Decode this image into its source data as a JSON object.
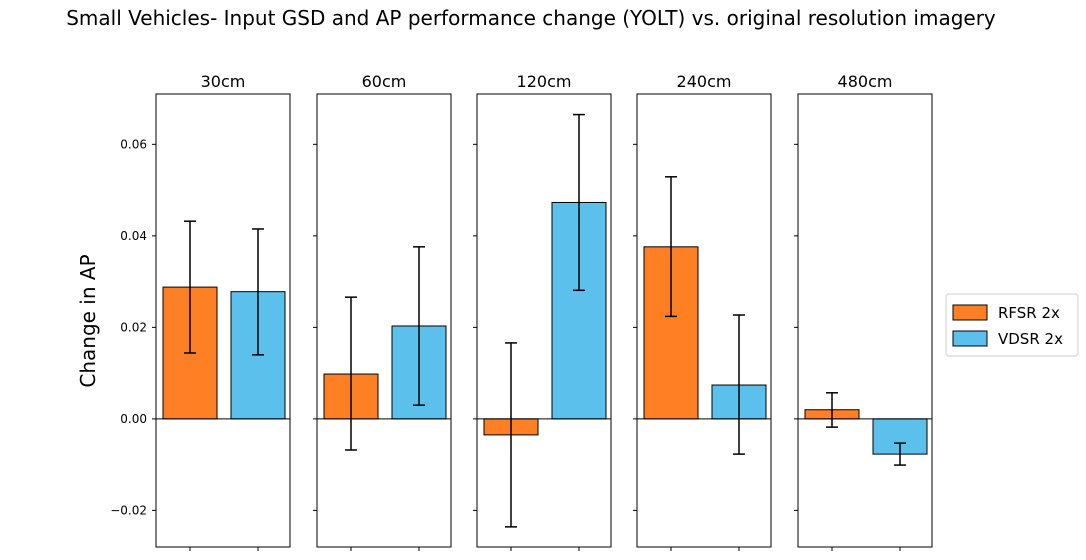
{
  "chart_data": {
    "type": "bar",
    "title": "Small Vehicles- Input GSD and AP performance change (YOLT) vs. original resolution imagery",
    "ylabel": "Change in AP",
    "xlabel": "",
    "ylim": [
      -0.028,
      0.071
    ],
    "yticks": [
      -0.02,
      0.0,
      0.02,
      0.04,
      0.06
    ],
    "ytick_labels": [
      "−0.02",
      "0.00",
      "0.02",
      "0.04",
      "0.06"
    ],
    "colors": {
      "RFSR 2x": "#ff7f24",
      "VDSR 2x": "#5bc0eb"
    },
    "legend": {
      "placement": "right",
      "entries": [
        "RFSR 2x",
        "VDSR 2x"
      ]
    },
    "panels": [
      {
        "title": "30cm",
        "bars": [
          {
            "series": "RFSR 2x",
            "value": 0.0288,
            "err_low": 0.0144,
            "err_high": 0.0432
          },
          {
            "series": "VDSR 2x",
            "value": 0.0278,
            "err_low": 0.014,
            "err_high": 0.0415
          }
        ]
      },
      {
        "title": "60cm",
        "bars": [
          {
            "series": "RFSR 2x",
            "value": 0.0098,
            "err_low": -0.0068,
            "err_high": 0.0266
          },
          {
            "series": "VDSR 2x",
            "value": 0.0203,
            "err_low": 0.003,
            "err_high": 0.0376
          }
        ]
      },
      {
        "title": "120cm",
        "bars": [
          {
            "series": "RFSR 2x",
            "value": -0.0035,
            "err_low": -0.0236,
            "err_high": 0.0166
          },
          {
            "series": "VDSR 2x",
            "value": 0.0473,
            "err_low": 0.0281,
            "err_high": 0.0665
          }
        ]
      },
      {
        "title": "240cm",
        "bars": [
          {
            "series": "RFSR 2x",
            "value": 0.0376,
            "err_low": 0.0224,
            "err_high": 0.0529
          },
          {
            "series": "VDSR 2x",
            "value": 0.0074,
            "err_low": -0.0077,
            "err_high": 0.0227
          }
        ]
      },
      {
        "title": "480cm",
        "bars": [
          {
            "series": "RFSR 2x",
            "value": 0.002,
            "err_low": -0.0018,
            "err_high": 0.0057
          },
          {
            "series": "VDSR 2x",
            "value": -0.0077,
            "err_low": -0.0101,
            "err_high": -0.0053
          }
        ]
      }
    ]
  }
}
